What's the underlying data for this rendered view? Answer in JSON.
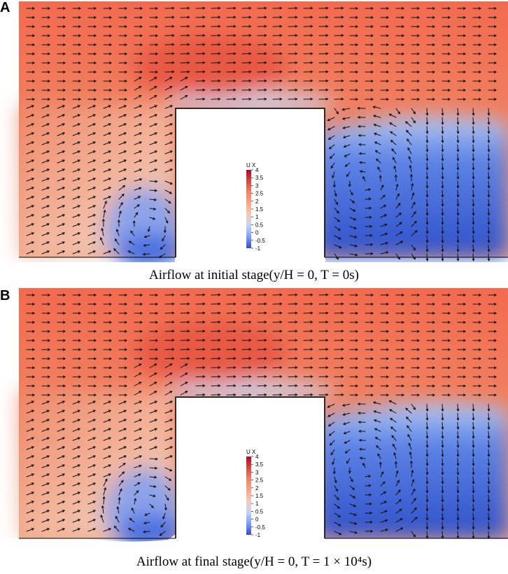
{
  "panels": [
    {
      "letter": "A",
      "caption": "Airflow at initial stage(y/H = 0, T = 0s)",
      "stage": "initial"
    },
    {
      "letter": "B",
      "caption": "Airflow at final stage(y/H = 0, T = 1 × 10⁴s)",
      "stage": "final"
    }
  ],
  "legend": {
    "title": "U X",
    "ticks": [
      "4",
      "3.5",
      "3",
      "2.5",
      "2",
      "1.5",
      "1",
      "0.5",
      "0",
      "-0.5",
      "-1"
    ],
    "range": [
      -1,
      4
    ],
    "colors": [
      "#3b4cc0",
      "#7b9ff9",
      "#c0d4f5",
      "#f2cbb7",
      "#f7a889",
      "#ee8468",
      "#d24b40",
      "#b40426"
    ]
  }
}
